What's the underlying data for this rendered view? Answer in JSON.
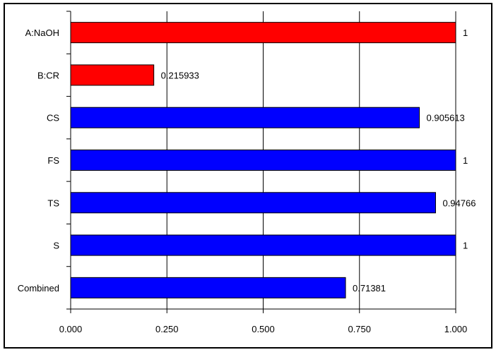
{
  "chart_data": {
    "type": "bar",
    "orientation": "horizontal",
    "categories": [
      "A:NaOH",
      "B:CR",
      "CS",
      "FS",
      "TS",
      "S",
      "Combined"
    ],
    "values": [
      1,
      0.215933,
      0.905613,
      1,
      0.94766,
      1,
      0.71381
    ],
    "value_labels": [
      "1",
      "0.215933",
      "0.905613",
      "1",
      "0.94766",
      "1",
      "0.71381"
    ],
    "bar_colors": [
      "#ff0000",
      "#ff0000",
      "#0000ff",
      "#0000ff",
      "#0000ff",
      "#0000ff",
      "#0000ff"
    ],
    "xlim": [
      0,
      1
    ],
    "xticks": [
      0,
      0.25,
      0.5,
      0.75,
      1
    ],
    "xtick_labels": [
      "0.000",
      "0.250",
      "0.500",
      "0.750",
      "1.000"
    ],
    "grid": true,
    "title": "",
    "xlabel": "",
    "ylabel": ""
  }
}
